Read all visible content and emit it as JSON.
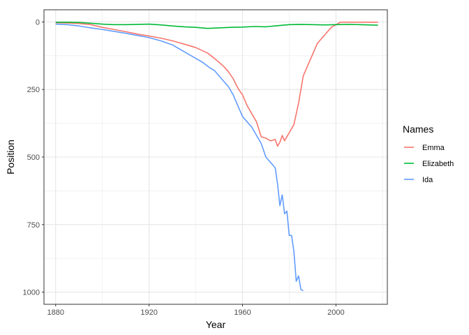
{
  "chart_data": {
    "type": "line",
    "title": "",
    "xlabel": "Year",
    "ylabel": "Position",
    "xlim": [
      1875,
      2022
    ],
    "ylim": [
      1045,
      -45
    ],
    "y_reversed": true,
    "x_ticks": [
      1880,
      1920,
      1960,
      2000
    ],
    "x_minor": [
      1900,
      1940,
      1980,
      2020
    ],
    "y_ticks": [
      0,
      250,
      500,
      750,
      1000
    ],
    "y_minor": [
      125,
      375,
      625,
      875
    ],
    "x_tick_labels": [
      "1880",
      "1920",
      "1960",
      "2000"
    ],
    "y_tick_labels": [
      "0",
      "250",
      "500",
      "750",
      "1000"
    ],
    "grid": true,
    "legend": {
      "title": "Names",
      "position": "right"
    },
    "series": [
      {
        "name": "Emma",
        "color": "#F8766D",
        "x": [
          1880,
          1885,
          1890,
          1895,
          1900,
          1905,
          1910,
          1915,
          1920,
          1925,
          1930,
          1935,
          1940,
          1945,
          1948,
          1950,
          1952,
          1954,
          1956,
          1958,
          1960,
          1962,
          1964,
          1966,
          1968,
          1970,
          1972,
          1974,
          1975,
          1976,
          1977,
          1978,
          1979,
          1980,
          1982,
          1984,
          1986,
          1988,
          1990,
          1992,
          1994,
          1996,
          1998,
          2000,
          2002,
          2006,
          2010,
          2014,
          2018
        ],
        "y": [
          3,
          4,
          6,
          10,
          20,
          28,
          36,
          45,
          52,
          60,
          70,
          82,
          95,
          115,
          135,
          150,
          165,
          185,
          210,
          245,
          270,
          310,
          340,
          370,
          425,
          430,
          440,
          435,
          460,
          445,
          420,
          440,
          425,
          410,
          380,
          300,
          200,
          160,
          120,
          80,
          60,
          40,
          20,
          10,
          1,
          1,
          1,
          1,
          1
        ]
      },
      {
        "name": "Elizabeth",
        "color": "#00BA38",
        "x": [
          1880,
          1885,
          1890,
          1895,
          1900,
          1905,
          1910,
          1915,
          1920,
          1925,
          1930,
          1935,
          1940,
          1945,
          1950,
          1955,
          1960,
          1965,
          1970,
          1975,
          1980,
          1985,
          1990,
          1995,
          2000,
          2005,
          2010,
          2014,
          2018
        ],
        "y": [
          1,
          1,
          2,
          5,
          8,
          10,
          10,
          9,
          8,
          11,
          15,
          18,
          20,
          24,
          22,
          20,
          19,
          17,
          18,
          14,
          10,
          9,
          10,
          11,
          10,
          9,
          10,
          11,
          12
        ]
      },
      {
        "name": "Ida",
        "color": "#619CFF",
        "x": [
          1880,
          1885,
          1890,
          1895,
          1900,
          1905,
          1910,
          1915,
          1920,
          1925,
          1930,
          1935,
          1940,
          1943,
          1946,
          1948,
          1950,
          1952,
          1954,
          1956,
          1958,
          1960,
          1962,
          1964,
          1966,
          1968,
          1970,
          1972,
          1974,
          1975,
          1976,
          1977,
          1978,
          1979,
          1980,
          1981,
          1982,
          1983,
          1984,
          1985,
          1986
        ],
        "y": [
          8,
          10,
          15,
          22,
          28,
          35,
          42,
          50,
          58,
          70,
          85,
          110,
          135,
          150,
          170,
          180,
          200,
          220,
          240,
          270,
          310,
          350,
          370,
          390,
          420,
          450,
          500,
          520,
          540,
          600,
          680,
          640,
          710,
          700,
          790,
          790,
          850,
          960,
          940,
          990,
          995
        ]
      }
    ]
  }
}
